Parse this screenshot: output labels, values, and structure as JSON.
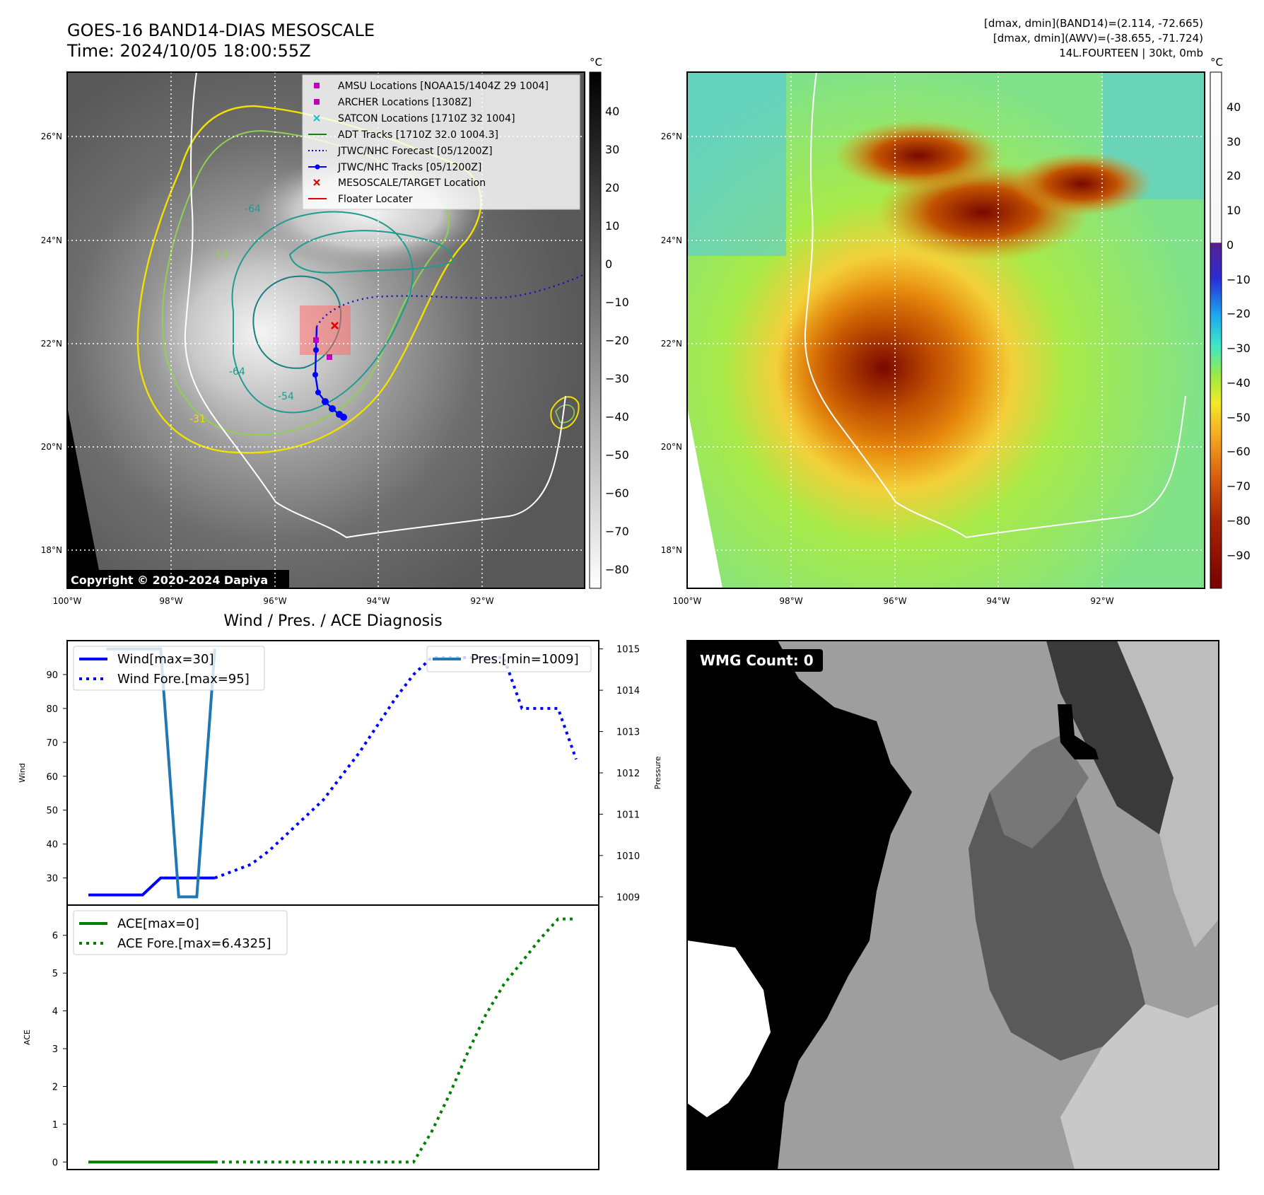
{
  "header": {
    "title": "GOES-16 BAND14-DIAS MESOSCALE",
    "time": "Time: 2024/10/05 18:00:55Z",
    "stat1": "[dmax, dmin](BAND14)=(2.114, -72.665)",
    "stat2": "[dmax, dmin](AWV)=(-38.655, -71.724)",
    "stat3": "14L.FOURTEEN | 30kt, 0mb"
  },
  "map": {
    "lat_labels": [
      "26°N",
      "24°N",
      "22°N",
      "20°N",
      "18°N"
    ],
    "lon_labels": [
      "100°W",
      "98°W",
      "96°W",
      "94°W",
      "92°W"
    ],
    "copyright": "Copyright © 2020-2024 Dapiya",
    "contour_labels": [
      "-64",
      "-54",
      "-31",
      "-64",
      "-54"
    ],
    "legend": [
      {
        "label": "AMSU Locations [NOAA15/1404Z 29 1004]",
        "marker": "square",
        "color": "#bf00bf"
      },
      {
        "label": "ARCHER Locations [1308Z]",
        "marker": "square",
        "color": "#bf00bf"
      },
      {
        "label": "SATCON Locations [1710Z 32 1004]",
        "marker": "x",
        "color": "#17becf"
      },
      {
        "label": "ADT Tracks [1710Z 32.0 1004.3]",
        "marker": "line",
        "color": "#1a7f1a"
      },
      {
        "label": "JTWC/NHC Forecast [05/1200Z]",
        "marker": "dotted",
        "color": "#0000cc"
      },
      {
        "label": "JTWC/NHC Tracks [05/1200Z]",
        "marker": "dotline",
        "color": "#0000ff"
      },
      {
        "label": "MESOSCALE/TARGET Location",
        "marker": "x",
        "color": "#e00000"
      },
      {
        "label": "Floater Locater",
        "marker": "line",
        "color": "#e00000"
      }
    ]
  },
  "colorbar_gray": {
    "unit": "°C",
    "ticks": [
      "40",
      "30",
      "20",
      "10",
      "0",
      "−10",
      "−20",
      "−30",
      "−40",
      "−50",
      "−60",
      "−70",
      "−80"
    ]
  },
  "colorbar_color": {
    "unit": "°C",
    "ticks": [
      "40",
      "30",
      "20",
      "10",
      "0",
      "−10",
      "−20",
      "−30",
      "−40",
      "−50",
      "−60",
      "−70",
      "−80",
      "−90"
    ]
  },
  "diagnosis": {
    "title": "Wind / Pres. / ACE Diagnosis",
    "wind_ylabel": "Wind",
    "pres_ylabel": "Pressure",
    "ace_ylabel": "ACE",
    "legend_wind": "Wind[max=30]",
    "legend_wind_fore": "Wind Fore.[max=95]",
    "legend_pres": "Pres.[min=1009]",
    "legend_ace": "ACE[max=0]",
    "legend_ace_fore": "ACE Fore.[max=6.4325]"
  },
  "wmg": {
    "label": "WMG Count: 0"
  },
  "chart_data": [
    {
      "type": "line",
      "title": "Wind / Pres. / ACE Diagnosis",
      "ylabel": "Wind",
      "ylim": [
        22,
        100
      ],
      "y_ticks": [
        "30",
        "40",
        "50",
        "60",
        "70",
        "80",
        "90"
      ],
      "x": [
        0,
        1,
        2,
        3,
        4,
        5,
        6,
        7,
        8,
        9,
        10,
        11,
        12,
        13,
        14,
        15,
        16,
        17,
        18,
        19,
        20,
        21,
        22,
        23,
        24,
        25,
        26,
        27
      ],
      "series": [
        {
          "name": "Wind[max=30]",
          "x": [
            0,
            1,
            2,
            3,
            4,
            5,
            6,
            7
          ],
          "values": [
            25,
            25,
            25,
            25,
            30,
            30,
            30,
            30
          ]
        },
        {
          "name": "Wind Fore.[max=95]",
          "x": [
            7,
            8,
            9,
            10,
            11,
            12,
            13,
            14,
            15,
            16,
            17,
            18,
            19,
            20,
            21,
            22,
            23,
            24,
            25,
            26,
            27
          ],
          "values": [
            30,
            32,
            34,
            38,
            43,
            48,
            53,
            60,
            67,
            75,
            83,
            90,
            95,
            95,
            95,
            95,
            95,
            80,
            80,
            80,
            65
          ]
        }
      ]
    },
    {
      "type": "line",
      "ylabel": "Pressure",
      "ylim": [
        1008.8,
        1015.2
      ],
      "y_ticks": [
        "1009",
        "1010",
        "1011",
        "1012",
        "1013",
        "1014",
        "1015"
      ],
      "series": [
        {
          "name": "Pres.[min=1009]",
          "x": [
            1,
            4,
            5,
            6,
            7
          ],
          "values": [
            1015,
            1015,
            1009,
            1009,
            1015
          ]
        }
      ]
    },
    {
      "type": "line",
      "ylabel": "ACE",
      "ylim": [
        -0.2,
        6.8
      ],
      "y_ticks": [
        "0",
        "1",
        "2",
        "3",
        "4",
        "5",
        "6"
      ],
      "series": [
        {
          "name": "ACE[max=0]",
          "x": [
            0,
            7
          ],
          "values": [
            0,
            0
          ]
        },
        {
          "name": "ACE Fore.[max=6.4325]",
          "x": [
            7,
            18,
            19,
            20,
            21,
            22,
            23,
            24,
            25,
            26,
            27
          ],
          "values": [
            0,
            0,
            0.8,
            1.8,
            2.9,
            3.9,
            4.7,
            5.3,
            5.9,
            6.4325,
            6.4325
          ]
        }
      ]
    }
  ]
}
